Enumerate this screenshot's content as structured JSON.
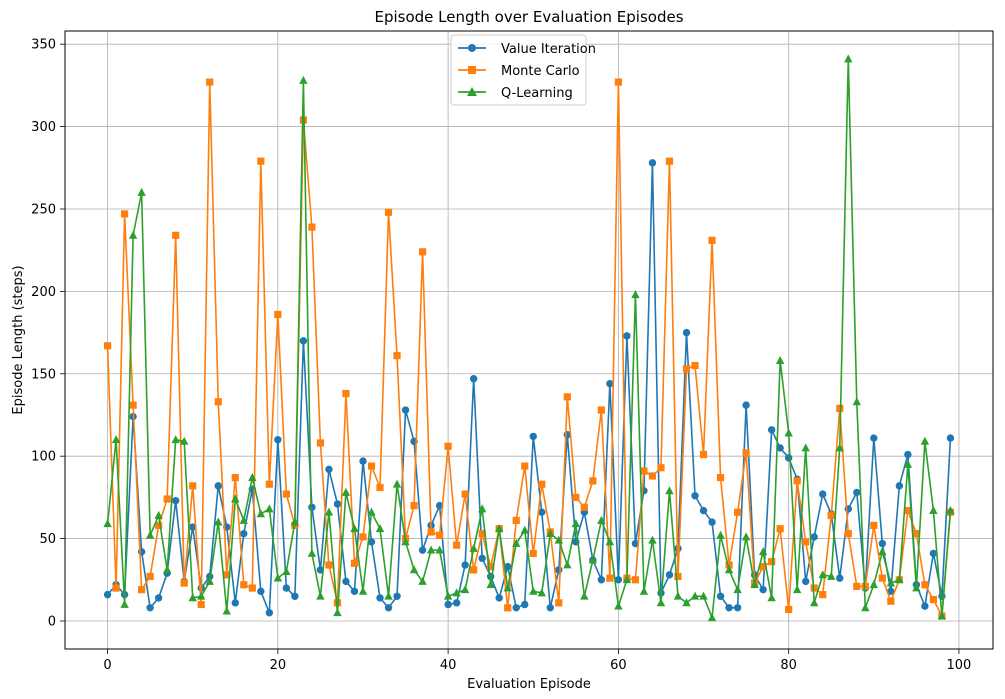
{
  "chart_data": {
    "type": "line",
    "title": "Episode Length over Evaluation Episodes",
    "xlabel": "Evaluation Episode",
    "ylabel": "Episode Length (steps)",
    "xlim": [
      -5.0,
      104.0
    ],
    "ylim": [
      -17,
      358
    ],
    "xticks": [
      0,
      20,
      40,
      60,
      80,
      100
    ],
    "yticks": [
      0,
      50,
      100,
      150,
      200,
      250,
      300,
      350
    ],
    "grid": true,
    "legend_position": "upper-center",
    "series": [
      {
        "name": "Value Iteration",
        "color": "#1f77b4",
        "marker": "circle",
        "values": [
          16,
          22,
          16,
          124,
          42,
          8,
          14,
          29,
          73,
          24,
          57,
          20,
          27,
          82,
          57,
          11,
          53,
          80,
          18,
          5,
          110,
          20,
          15,
          170,
          69,
          31,
          92,
          71,
          24,
          18,
          97,
          48,
          14,
          8,
          15,
          128,
          109,
          43,
          58,
          70,
          10,
          11,
          34,
          147,
          38,
          27,
          14,
          33,
          8,
          10,
          112,
          66,
          8,
          31,
          113,
          48,
          66,
          37,
          25,
          144,
          25,
          173,
          47,
          79,
          278,
          17,
          28,
          44,
          175,
          76,
          67,
          60,
          15,
          8,
          8,
          131,
          28,
          19,
          116,
          105,
          99,
          86,
          24,
          51,
          77,
          65,
          26,
          68,
          78,
          20,
          111,
          47,
          18,
          82,
          101,
          22,
          9,
          41,
          15,
          111
        ]
      },
      {
        "name": "Monte Carlo",
        "color": "#ff7f0e",
        "marker": "square",
        "values": [
          167,
          20,
          247,
          131,
          19,
          27,
          58,
          74,
          234,
          23,
          82,
          10,
          327,
          133,
          28,
          87,
          22,
          20,
          279,
          83,
          186,
          77,
          58,
          304,
          239,
          108,
          34,
          11,
          138,
          35,
          51,
          94,
          81,
          248,
          161,
          50,
          70,
          224,
          54,
          52,
          106,
          46,
          77,
          31,
          53,
          33,
          56,
          8,
          61,
          94,
          41,
          83,
          54,
          11,
          136,
          75,
          69,
          85,
          128,
          26,
          327,
          26,
          25,
          91,
          88,
          93,
          279,
          27,
          153,
          155,
          101,
          231,
          87,
          34,
          66,
          102,
          23,
          33,
          36,
          56,
          7,
          85,
          48,
          20,
          16,
          64,
          129,
          53,
          21,
          21,
          58,
          26,
          12,
          25,
          67,
          53,
          22,
          13,
          3,
          66
        ]
      },
      {
        "name": "Q-Learning",
        "color": "#2ca02c",
        "marker": "triangle",
        "values": [
          59,
          110,
          10,
          234,
          260,
          52,
          64,
          31,
          110,
          109,
          14,
          15,
          24,
          60,
          6,
          74,
          61,
          87,
          65,
          68,
          26,
          30,
          60,
          328,
          41,
          15,
          66,
          5,
          78,
          56,
          18,
          66,
          56,
          15,
          83,
          48,
          31,
          24,
          43,
          43,
          15,
          17,
          19,
          44,
          68,
          22,
          56,
          20,
          47,
          55,
          18,
          17,
          53,
          49,
          34,
          59,
          15,
          37,
          61,
          48,
          9,
          25,
          198,
          18,
          49,
          11,
          79,
          15,
          11,
          15,
          15,
          2,
          52,
          31,
          19,
          51,
          22,
          42,
          14,
          158,
          114,
          19,
          105,
          11,
          28,
          27,
          105,
          341,
          133,
          8,
          22,
          42,
          23,
          25,
          95,
          20,
          109,
          67,
          3,
          67
        ]
      }
    ]
  }
}
